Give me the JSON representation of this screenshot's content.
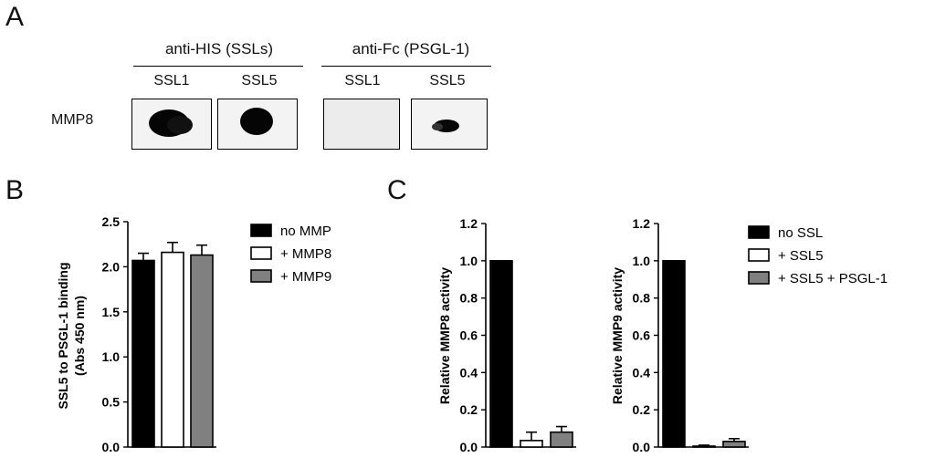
{
  "panels": {
    "a": "A",
    "b": "B",
    "c": "C"
  },
  "blot": {
    "group1_title": "anti-HIS (SSLs)",
    "group2_title": "anti-Fc (PSGL-1)",
    "lanes": [
      "SSL1",
      "SSL5",
      "SSL1",
      "SSL5"
    ],
    "row_label": "MMP8"
  },
  "chart_data": [
    {
      "type": "bar",
      "panel": "B",
      "ylabel": "SSL5 to PSGL-1 binding\n(Abs 450 nm)",
      "ylim": [
        0,
        2.5
      ],
      "yticks": [
        "0.0",
        "0.5",
        "1.0",
        "1.5",
        "2.0",
        "2.5"
      ],
      "categories": [
        "no MMP",
        "+ MMP8",
        "+ MMP9"
      ],
      "values": [
        2.07,
        2.16,
        2.13
      ],
      "errors": [
        0.08,
        0.11,
        0.11
      ],
      "colors": [
        "#000000",
        "#ffffff",
        "#808080"
      ],
      "legend": [
        "no MMP",
        "+ MMP8",
        "+ MMP9"
      ],
      "legend_position": "right",
      "grid": false
    },
    {
      "type": "bar",
      "panel": "C",
      "ylabel": "Relative  MMP8 activity",
      "ylim": [
        0,
        1.2
      ],
      "yticks": [
        "0.0",
        "0.2",
        "0.4",
        "0.6",
        "0.8",
        "1.0",
        "1.2"
      ],
      "categories": [
        "no  SSL",
        "+ SSL5",
        "+ SSL5 + PSGL-1"
      ],
      "values": [
        1.0,
        0.035,
        0.08
      ],
      "errors": [
        0,
        0.045,
        0.03
      ],
      "colors": [
        "#000000",
        "#ffffff",
        "#808080"
      ],
      "grid": false
    },
    {
      "type": "bar",
      "panel": "C",
      "ylabel": "Relative  MMP9 activity",
      "ylim": [
        0,
        1.2
      ],
      "yticks": [
        "0.0",
        "0.2",
        "0.4",
        "0.6",
        "0.8",
        "1.0",
        "1.2"
      ],
      "categories": [
        "no  SSL",
        "+ SSL5",
        "+ SSL5 + PSGL-1"
      ],
      "values": [
        1.0,
        0.005,
        0.03
      ],
      "errors": [
        0,
        0.005,
        0.015
      ],
      "colors": [
        "#000000",
        "#ffffff",
        "#808080"
      ],
      "legend": [
        "no  SSL",
        "+ SSL5",
        "+ SSL5 + PSGL-1"
      ],
      "legend_position": "right",
      "grid": false
    }
  ]
}
